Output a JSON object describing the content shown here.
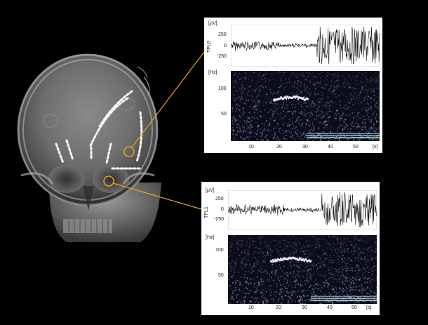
{
  "panels": [
    {
      "channel": "TPL6",
      "eeg_unit": "[µV]",
      "eeg_ticks": [
        "250",
        "0",
        "-250"
      ],
      "spec_unit": "[Hz]",
      "spec_ticks": [
        "100",
        "50"
      ],
      "time_ticks": [
        "10",
        "20",
        "30",
        "40",
        "50"
      ],
      "time_unit": "[s]"
    },
    {
      "channel": "TPL1",
      "eeg_unit": "[µV]",
      "eeg_ticks": [
        "250",
        "0",
        "-250"
      ],
      "spec_unit": "[Hz]",
      "spec_ticks": [
        "100",
        "50"
      ],
      "time_ticks": [
        "10",
        "20",
        "30",
        "40",
        "50"
      ],
      "time_unit": "[s]"
    }
  ],
  "colors": {
    "background": "#000000",
    "annotation": "#e8a21c",
    "electrode": "#f2f2f2"
  },
  "xray_image": "frontal skull radiograph with implanted depth electrodes"
}
